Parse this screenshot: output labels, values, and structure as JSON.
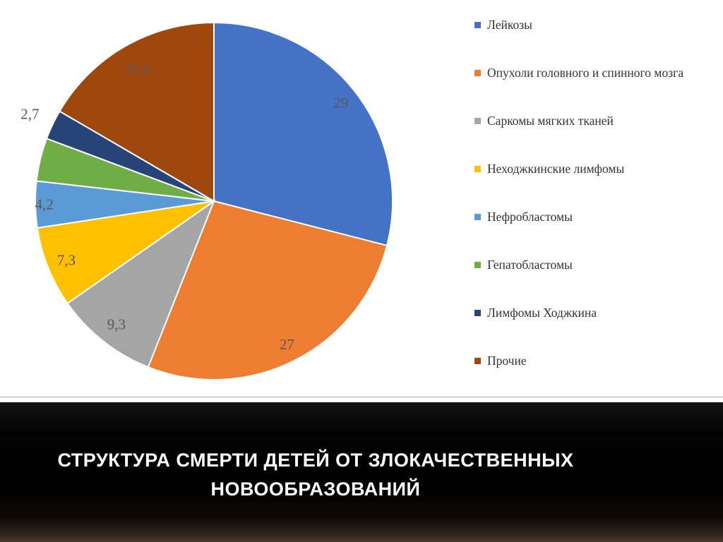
{
  "title": {
    "line1": "СТРУКТУРА СМЕРТИ ДЕТЕЙ ОТ ЗЛОКАЧЕСТВЕННЫХ",
    "line2": "НОВООБРАЗОВАНИЙ"
  },
  "chart_data": {
    "type": "pie",
    "title": "Структура смерти детей от злокачественных новообразований",
    "start_angle_deg": 0,
    "direction": "clockwise",
    "legend_position": "right",
    "data_label_color": "#595959",
    "slices": [
      {
        "label": "Лейкозы",
        "value": 29,
        "data_label": "29",
        "color": "#4472C4",
        "label_radius": 0.9
      },
      {
        "label": "Опухоли головного и спинного мозга",
        "value": 27,
        "data_label": "27",
        "color": "#ED7D31",
        "label_radius": 0.9
      },
      {
        "label": "Саркомы мягких тканей",
        "value": 9.3,
        "data_label": "9,3",
        "color": "#A5A5A5",
        "label_radius": 0.88
      },
      {
        "label": "Неходжкинские лимфомы",
        "value": 7.3,
        "data_label": "7,3",
        "color": "#FFC000",
        "label_radius": 0.89
      },
      {
        "label": "Нефробластомы",
        "value": 4.2,
        "data_label": "4,2",
        "color": "#5B9BD5",
        "label_radius": 0.95
      },
      {
        "label": "Гепатобластомы",
        "value": 3.9,
        "data_label": "",
        "color": "#70AD47",
        "label_radius": 0.9
      },
      {
        "label": "Лимфомы Ходжкина",
        "value": 2.7,
        "data_label": "2,7",
        "color": "#264478",
        "label_radius": 1.14
      },
      {
        "label": "Прочие",
        "value": 16.6,
        "data_label": "16,6",
        "color": "#9E480E",
        "label_radius": 0.86
      }
    ]
  }
}
